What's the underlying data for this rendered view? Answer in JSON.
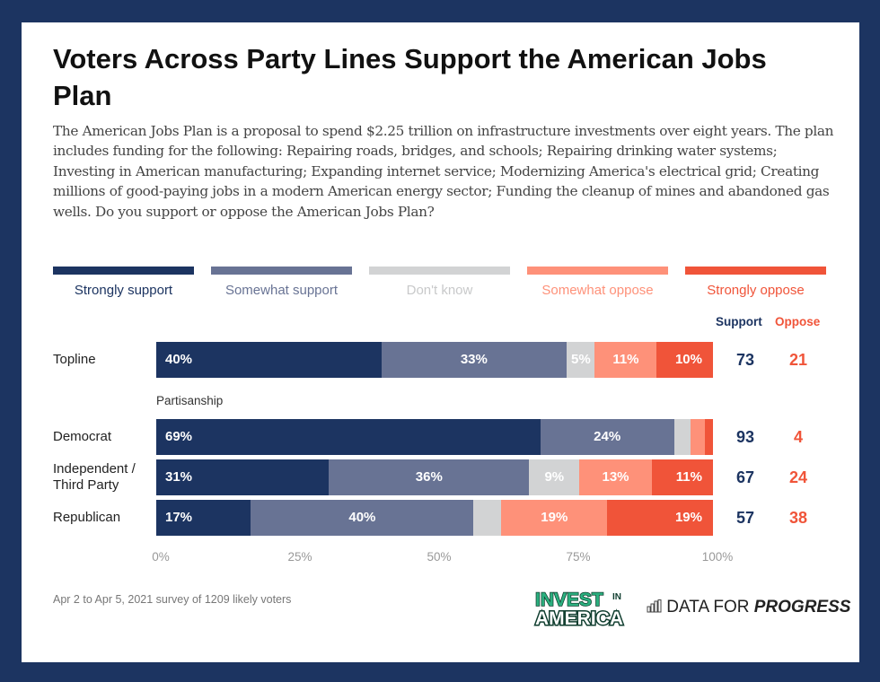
{
  "title": "Voters Across Party Lines Support the American Jobs Plan",
  "subtitle": "The American Jobs Plan is a proposal to spend $2.25 trillion on infrastructure investments over eight years. The plan includes funding for the following: Repairing roads, bridges, and schools; Repairing drinking water systems; Investing in American manufacturing; Expanding internet service; Modernizing America's electrical grid; Creating millions of good-paying jobs in a modern American energy sector; Funding the cleanup of mines and abandoned gas wells. Do you support or oppose the American Jobs Plan?",
  "footnote": "Apr 2 to Apr 5, 2021 survey of 1209 likely voters",
  "logos": {
    "invest_top": "INVEST",
    "invest_in": "IN",
    "invest_bottom": "AMERICA",
    "dfp_plain": "DATA FOR ",
    "dfp_bold": "PROGRESS",
    "dfp_icon": "bar-chart-icon"
  },
  "colors": {
    "frame": "#1c3461",
    "strongly_support": "#1c3461",
    "somewhat_support": "#687394",
    "dont_know": "#d2d3d4",
    "somewhat_oppose": "#fe9179",
    "strongly_oppose": "#f05439",
    "invest_green": "#2bb07f"
  },
  "chart_data": {
    "type": "bar",
    "orientation": "horizontal",
    "stacked": true,
    "title": "Voters Across Party Lines Support the American Jobs Plan",
    "xlabel": "",
    "ylabel": "",
    "xlim": [
      0,
      100
    ],
    "x_ticks": [
      "0%",
      "25%",
      "50%",
      "75%",
      "100%"
    ],
    "legend_position": "top",
    "series": [
      {
        "name": "Strongly support",
        "key": "strongly_support"
      },
      {
        "name": "Somewhat support",
        "key": "somewhat_support"
      },
      {
        "name": "Don't know",
        "key": "dont_know"
      },
      {
        "name": "Somewhat oppose",
        "key": "somewhat_oppose"
      },
      {
        "name": "Strongly oppose",
        "key": "strongly_oppose"
      }
    ],
    "summary_columns": [
      "Support",
      "Oppose"
    ],
    "group_label": "Partisanship",
    "rows": [
      {
        "category": "Topline",
        "values": [
          40,
          33,
          5,
          11,
          10
        ],
        "labels": [
          "40%",
          "33%",
          "5%",
          "11%",
          "10%"
        ],
        "support": 73,
        "oppose": 21
      },
      {
        "category": "Democrat",
        "values": [
          69,
          24,
          3,
          2.5,
          1.5
        ],
        "labels": [
          "69%",
          "24%",
          "",
          "",
          ""
        ],
        "support": 93,
        "oppose": 4
      },
      {
        "category": "Independent / Third Party",
        "values": [
          31,
          36,
          9,
          13,
          11
        ],
        "labels": [
          "31%",
          "36%",
          "9%",
          "13%",
          "11%"
        ],
        "support": 67,
        "oppose": 24
      },
      {
        "category": "Republican",
        "values": [
          17,
          40,
          5,
          19,
          19
        ],
        "labels": [
          "17%",
          "40%",
          "",
          "19%",
          "19%"
        ],
        "support": 57,
        "oppose": 38
      }
    ]
  }
}
